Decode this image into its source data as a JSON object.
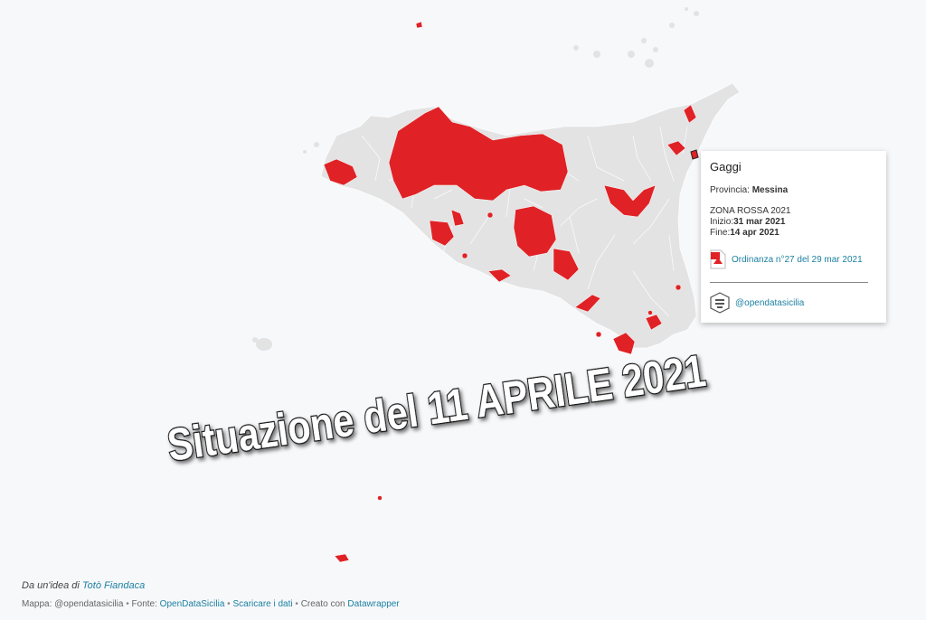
{
  "tooltip": {
    "title": "Gaggi",
    "provincia_label": "Provincia:",
    "provincia_value": "Messina",
    "zone": "ZONA ROSSA 2021",
    "inizio_label": "Inizio:",
    "inizio_value": "31 mar 2021",
    "fine_label": "Fine:",
    "fine_value": "14 apr 2021",
    "ordinance_link": "Ordinanza n°27 del 29 mar 2021",
    "user_link": "@opendatasicilia"
  },
  "headline": "Situazione del 11 APRILE 2021",
  "footer": {
    "idea_prefix": "Da un'idea di",
    "idea_author": "Totò Fiandaca",
    "map_credit": "Mappa: @opendatasicilia",
    "source_label": "Fonte:",
    "source_link": "OpenDataSicilia",
    "download_link": "Scaricare i dati",
    "created_label": "Creato con",
    "created_link": "Datawrapper",
    "separator": "•"
  },
  "map": {
    "land_color": "#e3e3e3",
    "zone_color": "#e02226",
    "background": "#f7f8fa",
    "legend_meaning": "red = zona rossa"
  }
}
